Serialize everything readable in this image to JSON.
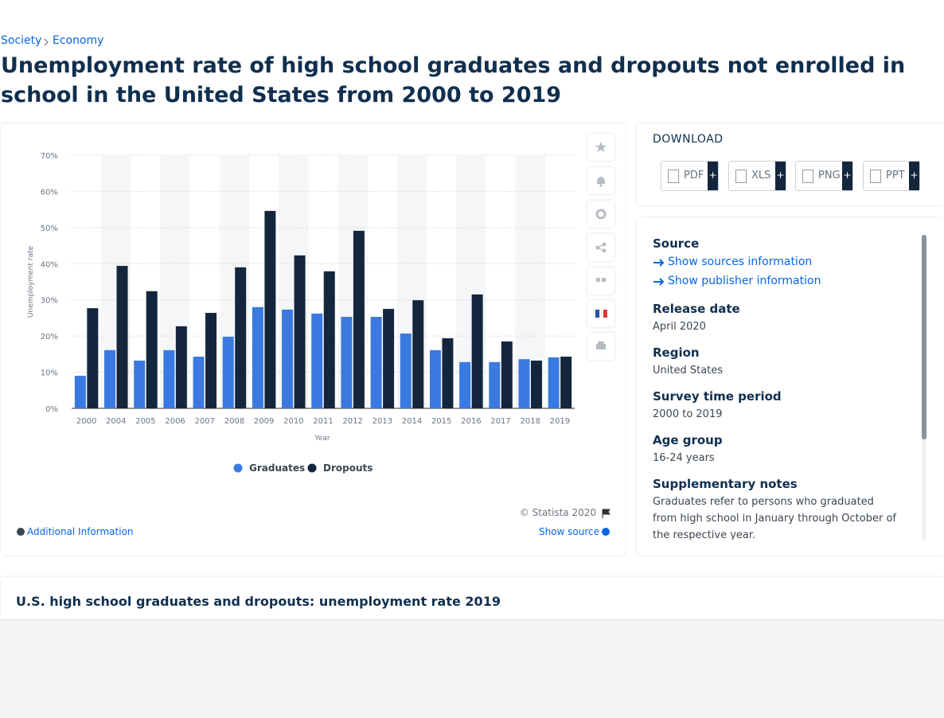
{
  "breadcrumb": [
    "Society",
    "Economy"
  ],
  "title": "Unemployment rate of high school graduates and dropouts not enrolled in school in the United States from 2000 to 2019",
  "chart_data": {
    "type": "bar",
    "categories": [
      "2000",
      "2004",
      "2005",
      "2006",
      "2007",
      "2008",
      "2009",
      "2010",
      "2011",
      "2012",
      "2013",
      "2014",
      "2015",
      "2016",
      "2017",
      "2018",
      "2019"
    ],
    "series": [
      {
        "name": "Graduates",
        "color": "#3a7ae0",
        "values": [
          9.0,
          16.1,
          13.2,
          16.1,
          14.3,
          19.8,
          28.0,
          27.3,
          26.2,
          25.3,
          25.3,
          20.7,
          16.1,
          12.8,
          12.8,
          13.6,
          14.1
        ]
      },
      {
        "name": "Dropouts",
        "color": "#14263d",
        "values": [
          27.7,
          39.4,
          32.4,
          22.7,
          26.4,
          39.0,
          54.6,
          42.3,
          37.9,
          49.1,
          27.5,
          29.9,
          19.4,
          31.5,
          18.5,
          13.2,
          14.3
        ]
      }
    ],
    "ylim": [
      0,
      70
    ],
    "yticks": [
      {
        "value": 0,
        "label": "0%"
      },
      {
        "value": 10,
        "label": "10%"
      },
      {
        "value": 20,
        "label": "20%"
      },
      {
        "value": 30,
        "label": "30%"
      },
      {
        "value": 40,
        "label": "40%"
      },
      {
        "value": 50,
        "label": "50%"
      },
      {
        "value": 60,
        "label": "60%"
      },
      {
        "value": 70,
        "label": "70%"
      }
    ],
    "y_label": "Unemployment rate",
    "x_label": "Year",
    "grid": true,
    "legend": "bottom",
    "credit": "© Statista 2020"
  },
  "chart_footer": {
    "additional_info": "Additional Information",
    "show_source": "Show source"
  },
  "download": {
    "heading": "DOWNLOAD",
    "formats": [
      "PDF",
      "XLS",
      "PNG",
      "PPT"
    ],
    "plus": "+"
  },
  "details": {
    "source": {
      "label": "Source",
      "links": [
        "Show sources information",
        "Show publisher information"
      ]
    },
    "items": [
      {
        "label": "Release date",
        "value": "April 2020"
      },
      {
        "label": "Region",
        "value": "United States"
      },
      {
        "label": "Survey time period",
        "value": "2000 to 2019"
      },
      {
        "label": "Age group",
        "value": "16-24 years"
      },
      {
        "label": "Supplementary notes",
        "value": "Graduates refer to persons who graduated from high school in January through October of the respective year."
      }
    ]
  },
  "related_title": "U.S. high school graduates and dropouts: unemployment rate 2019"
}
